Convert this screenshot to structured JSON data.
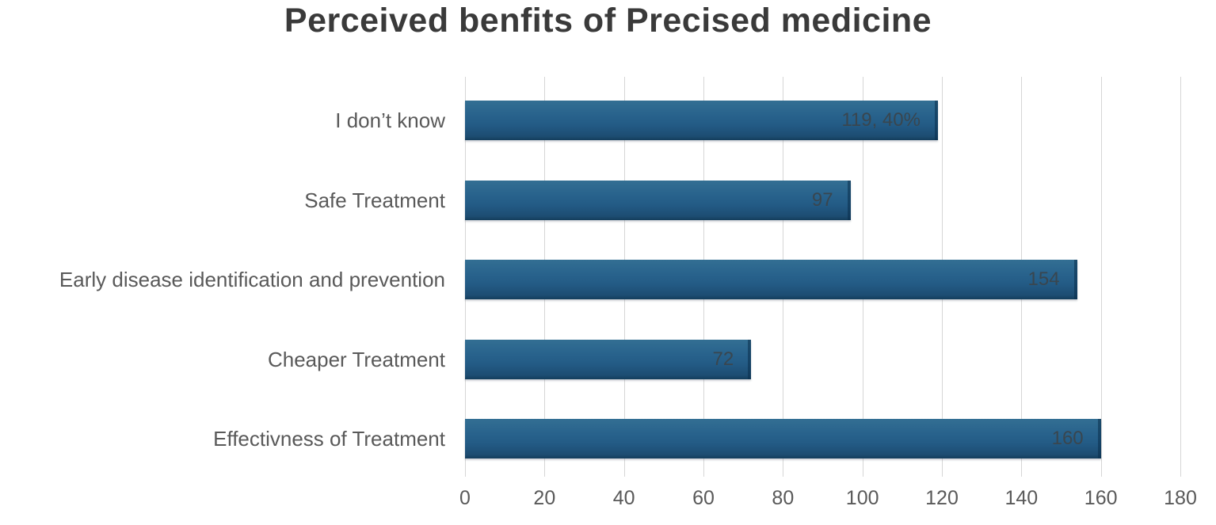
{
  "chart_data": {
    "type": "bar",
    "orientation": "horizontal",
    "title": "Perceived benfits of Precised medicine",
    "categories": [
      "I don’t know",
      "Safe Treatment",
      "Early disease identification and prevention",
      "Cheaper Treatment",
      "Effectivness of Treatment"
    ],
    "values": [
      119,
      97,
      154,
      72,
      160
    ],
    "bar_labels": [
      "119, 40%",
      "97",
      "154",
      "72",
      "160"
    ],
    "xlabel": "",
    "ylabel": "",
    "xlim": [
      0,
      180
    ],
    "xticks": [
      0,
      20,
      40,
      60,
      80,
      100,
      120,
      140,
      160,
      180
    ],
    "grid": true,
    "legend": false
  },
  "colors": {
    "bar": "#28628c",
    "bar_top": "#336f93",
    "bar_bottom": "#143d5c",
    "gridline": "#d6d6d6",
    "bar_label_text": "#39464f",
    "axis_text": "#595959",
    "title_text": "#3a3a3a",
    "background": "#ffffff"
  }
}
